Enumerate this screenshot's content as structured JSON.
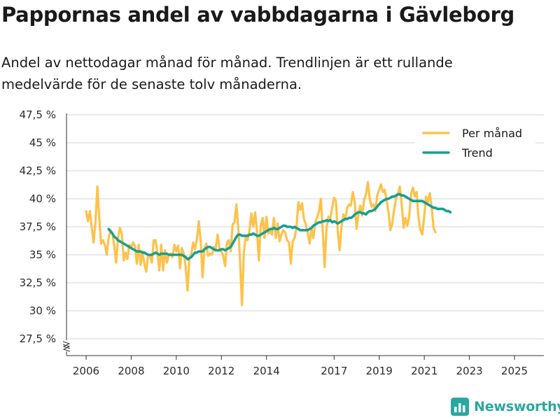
{
  "header": {
    "title": "Pappornas andel av vabbdagarna i Gävleborg",
    "subtitle": "Andel av nettodagar månad för månad. Trendlinjen är ett rullande medelvärde för de senaste tolv månaderna."
  },
  "brand": {
    "name": "Newsworthy",
    "icon": "bar-chart-logo-icon"
  },
  "colors": {
    "monthly": "#fdc24b",
    "trend": "#1a9f8f",
    "grid": "#dddddd",
    "axis": "#333333"
  },
  "chart_data": {
    "type": "line",
    "title": "Pappornas andel av vabbdagarna i Gävleborg",
    "xlabel": "",
    "ylabel": "",
    "ylim": [
      27.5,
      47.5
    ],
    "y_broken_axis": true,
    "y_ticks": [
      {
        "value": 27.5,
        "label": "27,5 %"
      },
      {
        "value": 30,
        "label": "30 %"
      },
      {
        "value": 32.5,
        "label": "32,5 %"
      },
      {
        "value": 35,
        "label": "35 %"
      },
      {
        "value": 37.5,
        "label": "37,5 %"
      },
      {
        "value": 40,
        "label": "40 %"
      },
      {
        "value": 42.5,
        "label": "42,5 %"
      },
      {
        "value": 45,
        "label": "45 %"
      },
      {
        "value": 47.5,
        "label": "47,5 %"
      }
    ],
    "x_ticks": [
      {
        "value": 2006,
        "label": "2006"
      },
      {
        "value": 2008,
        "label": "2008"
      },
      {
        "value": 2010,
        "label": "2010"
      },
      {
        "value": 2012,
        "label": "2012"
      },
      {
        "value": 2014,
        "label": "2014"
      },
      {
        "value": 2017,
        "label": "2017"
      },
      {
        "value": 2019,
        "label": "2019"
      },
      {
        "value": 2021,
        "label": "2021"
      },
      {
        "value": 2023,
        "label": "2023"
      },
      {
        "value": 2025,
        "label": "2025"
      }
    ],
    "x_range": [
      2006,
      2025.4
    ],
    "legend_position": "top-right",
    "series": [
      {
        "name": "Per månad",
        "color": "#fdc24b",
        "x_start": 2006.0,
        "x_step": 0.0833,
        "values": [
          38.9,
          38.0,
          38.9,
          37.5,
          36.1,
          37.9,
          41.1,
          38.3,
          36.0,
          36.3,
          35.9,
          35.0,
          36.5,
          37.2,
          36.9,
          35.8,
          34.3,
          36.5,
          37.4,
          36.9,
          34.5,
          35.2,
          34.6,
          35.9,
          35.6,
          36.1,
          35.8,
          34.2,
          35.9,
          34.1,
          35.3,
          34.2,
          33.5,
          35.0,
          34.9,
          34.3,
          36.3,
          36.3,
          35.1,
          33.6,
          35.9,
          33.6,
          35.4,
          34.3,
          35.0,
          35.1,
          34.8,
          35.9,
          35.3,
          35.8,
          33.8,
          35.6,
          35.1,
          34.0,
          31.8,
          34.6,
          35.1,
          36.1,
          35.5,
          36.4,
          38.0,
          36.2,
          33.0,
          35.5,
          36.0,
          34.9,
          35.1,
          35.0,
          35.7,
          35.5,
          36.8,
          35.6,
          35.3,
          34.9,
          34.0,
          36.1,
          36.3,
          35.3,
          37.7,
          37.9,
          39.5,
          37.5,
          34.4,
          30.5,
          35.3,
          36.6,
          36.3,
          37.2,
          38.7,
          37.5,
          38.8,
          37.0,
          34.5,
          37.6,
          38.3,
          36.5,
          38.4,
          36.9,
          37.1,
          36.8,
          38.3,
          36.5,
          37.8,
          36.2,
          36.8,
          37.2,
          37.0,
          36.3,
          36.1,
          34.2,
          36.2,
          36.5,
          37.4,
          39.7,
          39.0,
          39.6,
          38.2,
          37.7,
          37.0,
          36.0,
          37.3,
          36.5,
          37.9,
          38.3,
          38.9,
          40.0,
          37.1,
          33.9,
          37.4,
          38.4,
          38.2,
          39.2,
          40.1,
          39.8,
          37.1,
          35.4,
          37.5,
          38.6,
          38.2,
          39.2,
          39.5,
          39.4,
          40.6,
          39.7,
          37.3,
          38.6,
          39.4,
          38.5,
          39.9,
          40.4,
          41.5,
          40.0,
          39.3,
          39.5,
          38.9,
          40.3,
          40.8,
          41.3,
          40.6,
          40.8,
          39.9,
          38.8,
          37.2,
          37.8,
          39.0,
          40.0,
          40.4,
          41.1,
          39.6,
          37.4,
          38.3,
          37.6,
          38.4,
          40.4,
          41.0,
          40.2,
          40.6,
          38.3,
          37.2,
          36.8,
          38.4,
          40.2,
          39.7,
          40.5,
          39.2,
          37.4,
          37.0
        ]
      },
      {
        "name": "Trend",
        "color": "#1a9f8f",
        "x_start": 2007.0,
        "x_step": 0.0833,
        "values": [
          37.3,
          37.1,
          36.9,
          36.6,
          36.5,
          36.3,
          36.2,
          36.1,
          36.0,
          35.9,
          35.8,
          35.7,
          35.6,
          35.5,
          35.4,
          35.3,
          35.3,
          35.3,
          35.2,
          35.2,
          35.1,
          35.0,
          35.0,
          35.0,
          35.1,
          35.2,
          35.1,
          35.0,
          35.1,
          35.1,
          35.1,
          35.1,
          35.0,
          35.0,
          35.0,
          35.0,
          35.0,
          35.0,
          35.0,
          35.0,
          34.9,
          34.8,
          34.6,
          34.7,
          34.8,
          35.0,
          35.2,
          35.2,
          35.3,
          35.3,
          35.3,
          35.5,
          35.6,
          35.7,
          35.7,
          35.6,
          35.5,
          35.4,
          35.4,
          35.4,
          35.5,
          35.5,
          35.4,
          35.5,
          35.6,
          35.7,
          36.0,
          36.3,
          36.6,
          36.8,
          36.8,
          36.7,
          36.7,
          36.7,
          36.7,
          36.8,
          36.8,
          36.9,
          36.8,
          36.7,
          36.7,
          36.8,
          36.9,
          37.0,
          37.1,
          37.2,
          37.3,
          37.3,
          37.4,
          37.3,
          37.3,
          37.4,
          37.5,
          37.6,
          37.6,
          37.5,
          37.5,
          37.5,
          37.4,
          37.5,
          37.4,
          37.3,
          37.2,
          37.2,
          37.2,
          37.2,
          37.2,
          37.3,
          37.4,
          37.6,
          37.7,
          37.8,
          37.9,
          37.9,
          38.0,
          38.0,
          38.1,
          38.0,
          38.1,
          37.9,
          38.0,
          37.9,
          37.8,
          37.9,
          38.0,
          38.1,
          38.2,
          38.2,
          38.3,
          38.3,
          38.4,
          38.6,
          38.7,
          38.8,
          38.8,
          38.7,
          38.7,
          38.6,
          38.8,
          38.9,
          38.9,
          39.0,
          39.1,
          39.3,
          39.5,
          39.7,
          39.8,
          39.9,
          40.0,
          40.0,
          40.1,
          40.2,
          40.2,
          40.3,
          40.4,
          40.4,
          40.3,
          40.3,
          40.2,
          40.1,
          40.0,
          39.9,
          39.8,
          39.8,
          39.8,
          39.8,
          39.8,
          39.8,
          39.7,
          39.6,
          39.5,
          39.4,
          39.3,
          39.2,
          39.2,
          39.1,
          39.1,
          39.1,
          39.1,
          39.0,
          38.9,
          38.9,
          38.8
        ]
      }
    ]
  }
}
